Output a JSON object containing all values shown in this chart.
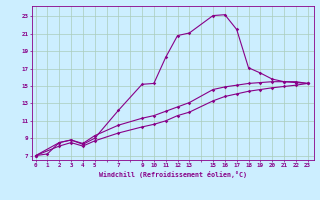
{
  "xlabel": "Windchill (Refroidissement éolien,°C)",
  "bg_color": "#cceeff",
  "grid_color": "#aaccbb",
  "line_color": "#880088",
  "xtick_labels": [
    "0",
    "1",
    "2",
    "3",
    "4",
    "5",
    "",
    "7",
    "",
    "9",
    "10",
    "11",
    "12",
    "13",
    "",
    "15",
    "16",
    "17",
    "18",
    "19",
    "20",
    "21",
    "22",
    "23"
  ],
  "xtick_positions": [
    0,
    1,
    2,
    3,
    4,
    5,
    6,
    7,
    8,
    9,
    10,
    11,
    12,
    13,
    14,
    15,
    16,
    17,
    18,
    19,
    20,
    21,
    22,
    23
  ],
  "yticks": [
    7,
    9,
    11,
    13,
    15,
    17,
    19,
    21,
    23
  ],
  "xlim": [
    -0.3,
    23.5
  ],
  "ylim": [
    6.5,
    24.2
  ],
  "curve1_x": [
    0,
    1,
    2,
    3,
    4,
    5,
    7,
    9,
    10,
    11,
    12,
    13,
    15,
    16,
    17,
    18,
    19,
    20,
    21,
    22,
    23
  ],
  "curve1_y": [
    7.0,
    7.2,
    8.5,
    8.8,
    8.3,
    9.0,
    12.2,
    15.2,
    15.3,
    18.3,
    20.8,
    21.1,
    23.1,
    23.2,
    21.5,
    17.1,
    16.5,
    15.8,
    15.5,
    15.5,
    15.3
  ],
  "curve2_x": [
    0,
    2,
    3,
    4,
    5,
    7,
    9,
    10,
    11,
    12,
    13,
    15,
    16,
    17,
    18,
    19,
    20,
    21,
    22,
    23
  ],
  "curve2_y": [
    7.0,
    8.5,
    8.8,
    8.4,
    9.3,
    10.5,
    11.3,
    11.6,
    12.1,
    12.6,
    13.1,
    14.6,
    14.9,
    15.1,
    15.3,
    15.4,
    15.5,
    15.5,
    15.4,
    15.3
  ],
  "curve3_x": [
    0,
    2,
    3,
    4,
    5,
    7,
    9,
    10,
    11,
    12,
    13,
    15,
    16,
    17,
    18,
    19,
    20,
    21,
    22,
    23
  ],
  "curve3_y": [
    7.0,
    8.1,
    8.5,
    8.1,
    8.7,
    9.6,
    10.3,
    10.6,
    11.0,
    11.6,
    12.0,
    13.3,
    13.8,
    14.1,
    14.4,
    14.6,
    14.8,
    14.95,
    15.1,
    15.3
  ]
}
